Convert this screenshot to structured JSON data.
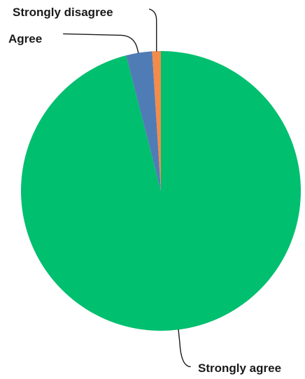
{
  "chart_data": {
    "type": "pie",
    "title": "",
    "series": [
      {
        "values": [
          {
            "label": "Strongly agree",
            "value": 96.0,
            "color": "#00bf6f"
          },
          {
            "label": "Agree",
            "value": 3.0,
            "color": "#507cb6"
          },
          {
            "label": "Strongly disagree",
            "value": 1.0,
            "color": "#f38b4a"
          }
        ]
      }
    ],
    "start_angle_deg": 0,
    "direction": "clockwise",
    "labels_with_leader_lines": true,
    "legend": "none"
  }
}
